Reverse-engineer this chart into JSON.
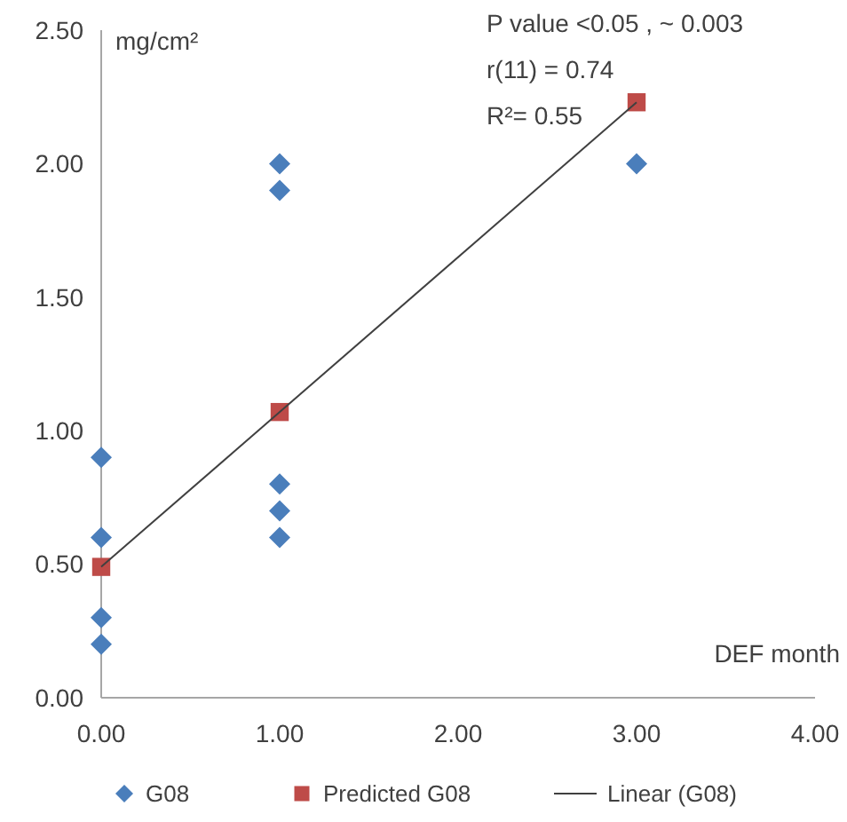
{
  "chart_data": {
    "type": "scatter",
    "ylabel": "mg/cm²",
    "xlabel": "DEF  month",
    "annotations": [
      "P value  <0.05 , ~ 0.003",
      "r(11) = 0.74",
      "R²= 0.55"
    ],
    "xlim": [
      0,
      4
    ],
    "xticks": [
      {
        "value": 0,
        "label": "0.00"
      },
      {
        "value": 1,
        "label": "1.00"
      },
      {
        "value": 2,
        "label": "2.00"
      },
      {
        "value": 3,
        "label": "3.00"
      },
      {
        "value": 4,
        "label": "4.00"
      }
    ],
    "ylim": [
      0,
      2.5
    ],
    "yticks": [
      {
        "value": 0,
        "label": "0.00"
      },
      {
        "value": 0.5,
        "label": "0.50"
      },
      {
        "value": 1,
        "label": "1.00"
      },
      {
        "value": 1.5,
        "label": "1.50"
      },
      {
        "value": 2,
        "label": "2.00"
      },
      {
        "value": 2.5,
        "label": "2.50"
      }
    ],
    "grid": false,
    "legend": "bottom",
    "series": [
      {
        "name": "G08",
        "marker": "diamond",
        "color": "#4a7ebb",
        "x": [
          0,
          0,
          0,
          0,
          1,
          1,
          1,
          1,
          1,
          3
        ],
        "values": [
          0.9,
          0.6,
          0.3,
          0.2,
          2.0,
          1.9,
          0.8,
          0.7,
          0.6,
          2.0
        ]
      },
      {
        "name": "Predicted G08",
        "marker": "square",
        "color": "#be4b48",
        "x": [
          0,
          1,
          3
        ],
        "values": [
          0.49,
          1.07,
          2.23
        ]
      },
      {
        "name": "Linear (G08)",
        "type": "line",
        "marker": "none",
        "line_style": "solid",
        "color": "#404040",
        "x": [
          0,
          3
        ],
        "values": [
          0.49,
          2.23
        ]
      }
    ]
  }
}
